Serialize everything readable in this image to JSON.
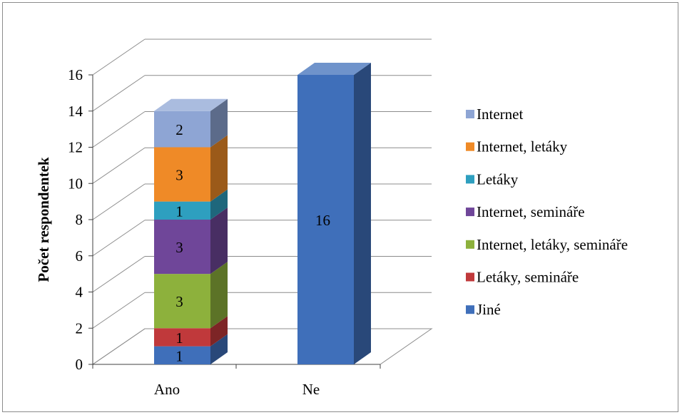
{
  "chart_data": {
    "type": "bar",
    "stacked": true,
    "three_d": true,
    "categories": [
      "Ano",
      "Ne"
    ],
    "ylabel": "Počet respondentek",
    "xlabel": "",
    "ylim": [
      0,
      16
    ],
    "yticks": [
      0,
      2,
      4,
      6,
      8,
      10,
      12,
      14,
      16
    ],
    "grid": true,
    "legend_position": "right",
    "series": [
      {
        "name": "Jiné",
        "values": [
          1,
          16
        ],
        "color": "#3f6fba"
      },
      {
        "name": "Letáky, semináře",
        "values": [
          1,
          0
        ],
        "color": "#c0393b"
      },
      {
        "name": "Internet, letáky, semináře",
        "values": [
          3,
          0
        ],
        "color": "#8db13c"
      },
      {
        "name": "Internet, semináře",
        "values": [
          3,
          0
        ],
        "color": "#6f4699"
      },
      {
        "name": "Letáky",
        "values": [
          1,
          0
        ],
        "color": "#2e9fbf"
      },
      {
        "name": "Internet, letáky",
        "values": [
          3,
          0
        ],
        "color": "#ef8a27"
      },
      {
        "name": "Internet",
        "values": [
          2,
          0
        ],
        "color": "#8ea5d4"
      }
    ]
  }
}
